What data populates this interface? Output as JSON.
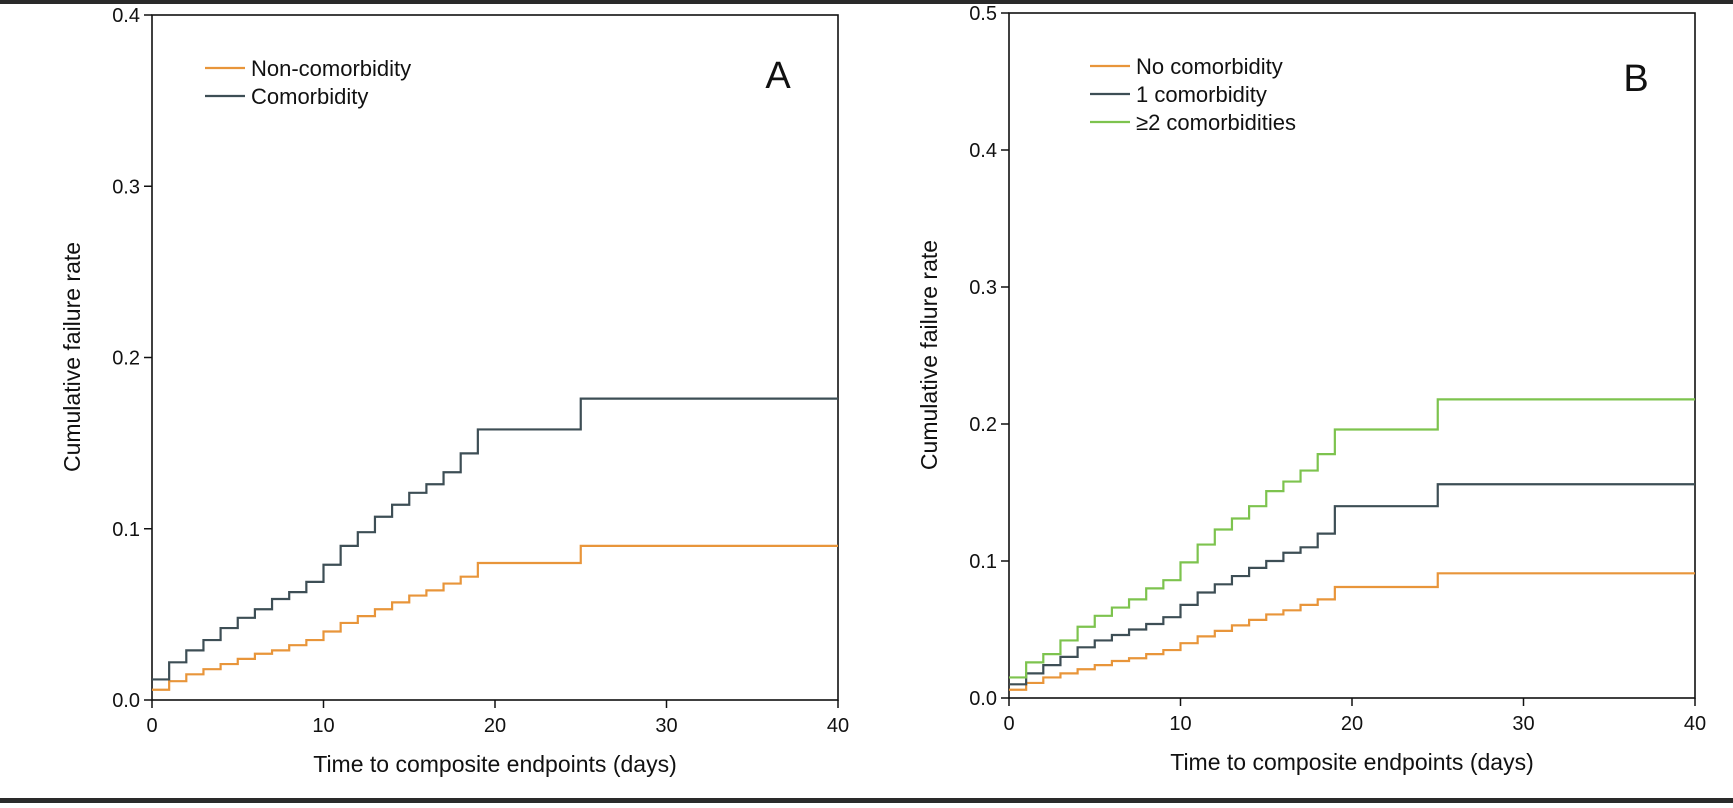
{
  "chart_data": [
    {
      "type": "line",
      "panel_label": "A",
      "xlabel": "Time to composite endpoints (days)",
      "ylabel": "Cumulative failure rate",
      "xlim": [
        0,
        40
      ],
      "ylim": [
        0,
        0.4
      ],
      "xticks": [
        "0",
        "10",
        "20",
        "30",
        "40"
      ],
      "yticks": [
        "0.0",
        "0.1",
        "0.2",
        "0.3",
        "0.4"
      ],
      "xtick_values": [
        0,
        10,
        20,
        30,
        40
      ],
      "ytick_values": [
        0,
        0.1,
        0.2,
        0.3,
        0.4
      ],
      "legend_position": "top-left",
      "series": [
        {
          "name": "Non-comorbidity",
          "color": "#E8953A",
          "x": [
            0,
            1,
            2,
            3,
            4,
            5,
            6,
            7,
            8,
            9,
            10,
            11,
            12,
            13,
            14,
            15,
            16,
            17,
            18,
            19,
            25,
            40
          ],
          "y": [
            0.006,
            0.011,
            0.015,
            0.018,
            0.021,
            0.024,
            0.027,
            0.029,
            0.032,
            0.035,
            0.04,
            0.045,
            0.049,
            0.053,
            0.057,
            0.061,
            0.064,
            0.068,
            0.072,
            0.08,
            0.09,
            0.09
          ]
        },
        {
          "name": "Comorbidity",
          "color": "#3D4E55",
          "x": [
            0,
            1,
            2,
            3,
            4,
            5,
            6,
            7,
            8,
            9,
            10,
            11,
            12,
            13,
            14,
            15,
            16,
            17,
            18,
            19,
            25,
            40
          ],
          "y": [
            0.012,
            0.022,
            0.029,
            0.035,
            0.042,
            0.048,
            0.053,
            0.059,
            0.063,
            0.069,
            0.079,
            0.09,
            0.098,
            0.107,
            0.114,
            0.121,
            0.126,
            0.133,
            0.144,
            0.158,
            0.176,
            0.176
          ]
        }
      ]
    },
    {
      "type": "line",
      "panel_label": "B",
      "xlabel": "Time to composite endpoints (days)",
      "ylabel": "Cumulative failure rate",
      "xlim": [
        0,
        40
      ],
      "ylim": [
        0,
        0.5
      ],
      "xticks": [
        "0",
        "10",
        "20",
        "30",
        "40"
      ],
      "yticks": [
        "0.0",
        "0.1",
        "0.2",
        "0.3",
        "0.4",
        "0.5"
      ],
      "xtick_values": [
        0,
        10,
        20,
        30,
        40
      ],
      "ytick_values": [
        0,
        0.1,
        0.2,
        0.3,
        0.4,
        0.5
      ],
      "legend_position": "top-left",
      "series": [
        {
          "name": "No comorbidity",
          "color": "#E8953A",
          "x": [
            0,
            1,
            2,
            3,
            4,
            5,
            6,
            7,
            8,
            9,
            10,
            11,
            12,
            13,
            14,
            15,
            16,
            17,
            18,
            19,
            25,
            40
          ],
          "y": [
            0.006,
            0.011,
            0.015,
            0.018,
            0.021,
            0.024,
            0.027,
            0.029,
            0.032,
            0.035,
            0.04,
            0.045,
            0.049,
            0.053,
            0.057,
            0.061,
            0.064,
            0.068,
            0.072,
            0.081,
            0.091,
            0.091
          ]
        },
        {
          "name": "1 comorbidity",
          "color": "#3D4E55",
          "x": [
            0,
            1,
            2,
            3,
            4,
            5,
            6,
            7,
            8,
            9,
            10,
            11,
            12,
            13,
            14,
            15,
            16,
            17,
            18,
            19,
            25,
            40
          ],
          "y": [
            0.01,
            0.018,
            0.024,
            0.03,
            0.037,
            0.042,
            0.046,
            0.05,
            0.054,
            0.059,
            0.068,
            0.077,
            0.083,
            0.089,
            0.095,
            0.1,
            0.106,
            0.11,
            0.12,
            0.14,
            0.156,
            0.156
          ]
        },
        {
          "name": "≥2 comorbidities",
          "color": "#7DC34E",
          "x": [
            0,
            1,
            2,
            3,
            4,
            5,
            6,
            7,
            8,
            9,
            10,
            11,
            12,
            13,
            14,
            15,
            16,
            17,
            18,
            19,
            25,
            40
          ],
          "y": [
            0.015,
            0.026,
            0.032,
            0.042,
            0.052,
            0.06,
            0.066,
            0.072,
            0.08,
            0.086,
            0.099,
            0.112,
            0.123,
            0.131,
            0.14,
            0.151,
            0.158,
            0.166,
            0.178,
            0.196,
            0.218,
            0.218
          ]
        }
      ]
    }
  ]
}
